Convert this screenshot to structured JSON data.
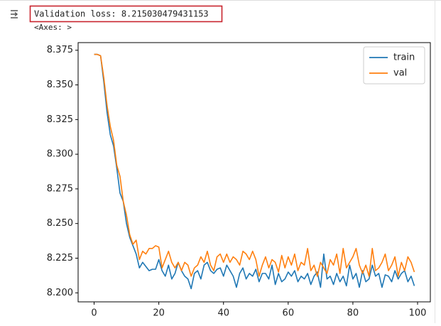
{
  "output": {
    "printed": "Validation loss:  8.215030479431153",
    "repr": "<Axes: >"
  },
  "chart_data": {
    "type": "line",
    "x": [
      0,
      1,
      2,
      3,
      4,
      5,
      6,
      7,
      8,
      9,
      10,
      11,
      12,
      13,
      14,
      15,
      16,
      17,
      18,
      19,
      20,
      21,
      22,
      23,
      24,
      25,
      26,
      27,
      28,
      29,
      30,
      31,
      32,
      33,
      34,
      35,
      36,
      37,
      38,
      39,
      40,
      41,
      42,
      43,
      44,
      45,
      46,
      47,
      48,
      49,
      50,
      51,
      52,
      53,
      54,
      55,
      56,
      57,
      58,
      59,
      60,
      61,
      62,
      63,
      64,
      65,
      66,
      67,
      68,
      69,
      70,
      71,
      72,
      73,
      74,
      75,
      76,
      77,
      78,
      79,
      80,
      81,
      82,
      83,
      84,
      85,
      86,
      87,
      88,
      89,
      90,
      91,
      92,
      93,
      94,
      95,
      96,
      97,
      98,
      99
    ],
    "series": [
      {
        "name": "train",
        "color": "#1f77b4",
        "values": [
          8.372,
          8.372,
          8.371,
          8.352,
          8.33,
          8.314,
          8.306,
          8.29,
          8.272,
          8.266,
          8.25,
          8.24,
          8.234,
          8.228,
          8.218,
          8.222,
          8.219,
          8.216,
          8.217,
          8.217,
          8.224,
          8.216,
          8.212,
          8.22,
          8.21,
          8.214,
          8.222,
          8.216,
          8.212,
          8.21,
          8.203,
          8.214,
          8.216,
          8.21,
          8.22,
          8.222,
          8.216,
          8.214,
          8.217,
          8.218,
          8.212,
          8.22,
          8.216,
          8.212,
          8.204,
          8.214,
          8.218,
          8.21,
          8.214,
          8.212,
          8.217,
          8.208,
          8.214,
          8.214,
          8.21,
          8.22,
          8.206,
          8.214,
          8.208,
          8.21,
          8.215,
          8.212,
          8.216,
          8.208,
          8.212,
          8.21,
          8.214,
          8.206,
          8.212,
          8.215,
          8.204,
          8.228,
          8.21,
          8.212,
          8.206,
          8.214,
          8.208,
          8.212,
          8.205,
          8.22,
          8.21,
          8.214,
          8.204,
          8.216,
          8.208,
          8.21,
          8.22,
          8.212,
          8.214,
          8.204,
          8.213,
          8.212,
          8.208,
          8.216,
          8.21,
          8.214,
          8.216,
          8.208,
          8.212,
          8.205
        ]
      },
      {
        "name": "val",
        "color": "#ff7f0e",
        "values": [
          8.372,
          8.372,
          8.371,
          8.355,
          8.335,
          8.32,
          8.31,
          8.292,
          8.284,
          8.266,
          8.256,
          8.242,
          8.235,
          8.238,
          8.224,
          8.23,
          8.228,
          8.232,
          8.232,
          8.234,
          8.233,
          8.218,
          8.224,
          8.23,
          8.222,
          8.218,
          8.222,
          8.216,
          8.222,
          8.22,
          8.212,
          8.218,
          8.22,
          8.226,
          8.222,
          8.23,
          8.22,
          8.216,
          8.226,
          8.228,
          8.222,
          8.228,
          8.222,
          8.226,
          8.224,
          8.22,
          8.23,
          8.228,
          8.224,
          8.23,
          8.224,
          8.212,
          8.22,
          8.226,
          8.218,
          8.224,
          8.222,
          8.215,
          8.227,
          8.218,
          8.226,
          8.22,
          8.228,
          8.216,
          8.222,
          8.22,
          8.232,
          8.216,
          8.22,
          8.212,
          8.222,
          8.218,
          8.214,
          8.224,
          8.22,
          8.228,
          8.214,
          8.232,
          8.218,
          8.222,
          8.226,
          8.232,
          8.22,
          8.214,
          8.22,
          8.212,
          8.232,
          8.216,
          8.218,
          8.222,
          8.228,
          8.216,
          8.22,
          8.226,
          8.212,
          8.222,
          8.216,
          8.226,
          8.222,
          8.215
        ]
      }
    ],
    "xlim": [
      -4.95,
      103.95
    ],
    "ylim": [
      8.1935,
      8.3805
    ],
    "xticks": [
      0,
      20,
      40,
      60,
      80,
      100
    ],
    "yticks": [
      {
        "value": 8.2,
        "label": "8.200"
      },
      {
        "value": 8.225,
        "label": "8.225"
      },
      {
        "value": 8.25,
        "label": "8.250"
      },
      {
        "value": 8.275,
        "label": "8.275"
      },
      {
        "value": 8.3,
        "label": "8.300"
      },
      {
        "value": 8.325,
        "label": "8.325"
      },
      {
        "value": 8.35,
        "label": "8.350"
      },
      {
        "value": 8.375,
        "label": "8.375"
      }
    ],
    "legend": "upper right",
    "grid": false
  }
}
